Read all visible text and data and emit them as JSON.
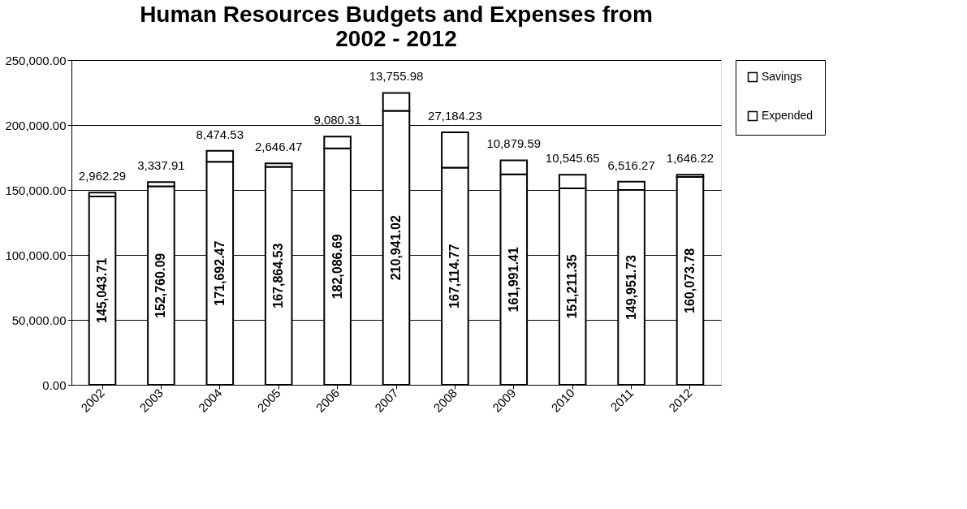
{
  "chart_data": {
    "type": "bar",
    "title": "Human Resources Budgets and Expenses from 2002 - 2012",
    "categories": [
      "2002",
      "2003",
      "2004",
      "2005",
      "2006",
      "2007",
      "2008",
      "2009",
      "2010",
      "2011",
      "2012"
    ],
    "series": [
      {
        "name": "Expended",
        "color": "#ffffff",
        "values": [
          145043.71,
          152760.09,
          171692.47,
          167864.53,
          182086.69,
          210941.02,
          167114.77,
          161991.41,
          151211.35,
          149951.73,
          160073.78
        ],
        "value_labels": [
          "145,043.71",
          "152,760.09",
          "171,692.47",
          "167,864.53",
          "182,086.69",
          "210,941.02",
          "167,114.77",
          "161,991.41",
          "151,211.35",
          "149,951.73",
          "160,073.78"
        ]
      },
      {
        "name": "Savings",
        "color": "#ffffff",
        "values": [
          2962.29,
          3337.91,
          8474.53,
          2646.47,
          9080.31,
          13755.98,
          27184.23,
          10879.59,
          10545.65,
          6516.27,
          1646.22
        ],
        "value_labels": [
          "2,962.29",
          "3,337.91",
          "8,474.53",
          "2,646.47",
          "9,080.31",
          "13,755.98",
          "27,184.23",
          "10,879.59",
          "10,545.65",
          "6,516.27",
          "1,646.22"
        ]
      }
    ],
    "stacked": true,
    "grid": "y",
    "legend": "right",
    "ylim": [
      0,
      250000
    ],
    "yticks": [
      {
        "value": 0,
        "label": "0.00"
      },
      {
        "value": 50000,
        "label": "50,000.00"
      },
      {
        "value": 100000,
        "label": "100,000.00"
      },
      {
        "value": 150000,
        "label": "150,000.00"
      },
      {
        "value": 200000,
        "label": "200,000.00"
      },
      {
        "value": 250000,
        "label": "250,000.00"
      }
    ]
  }
}
